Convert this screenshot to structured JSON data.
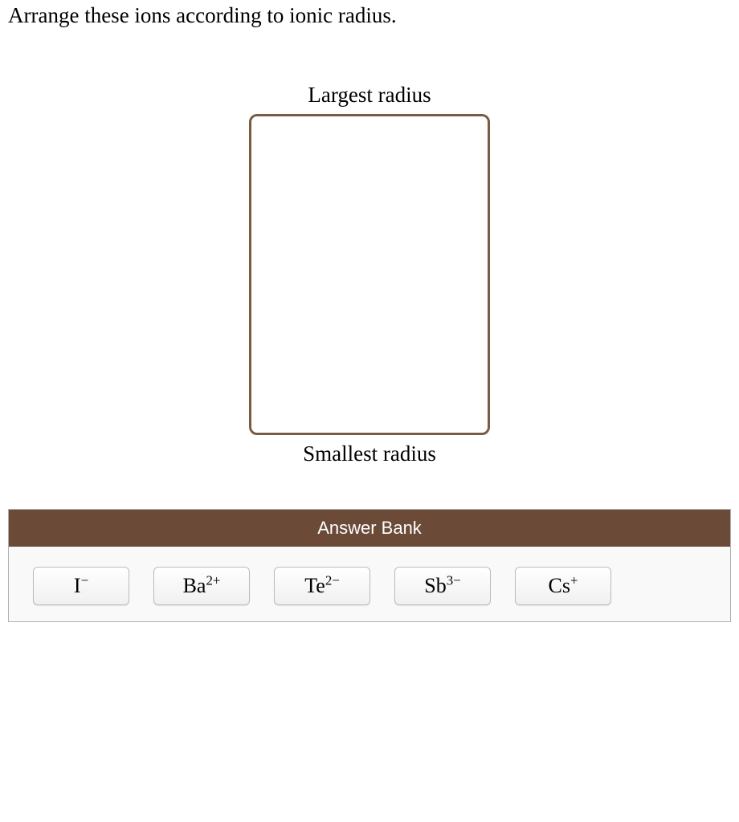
{
  "question": {
    "prompt": "Arrange these ions according to ionic radius."
  },
  "ranking": {
    "top_label": "Largest radius",
    "bottom_label": "Smallest radius",
    "dropzone_border_color": "#7a5c44"
  },
  "answer_bank": {
    "header": "Answer Bank",
    "header_bg": "#6b4a38",
    "header_color": "#ffffff",
    "panel_bg": "#f9f9f9",
    "tiles": [
      {
        "base": "I",
        "sup": "−"
      },
      {
        "base": "Ba",
        "sup": "2+"
      },
      {
        "base": "Te",
        "sup": "2−"
      },
      {
        "base": "Sb",
        "sup": "3−"
      },
      {
        "base": "Cs",
        "sup": "+"
      }
    ]
  }
}
